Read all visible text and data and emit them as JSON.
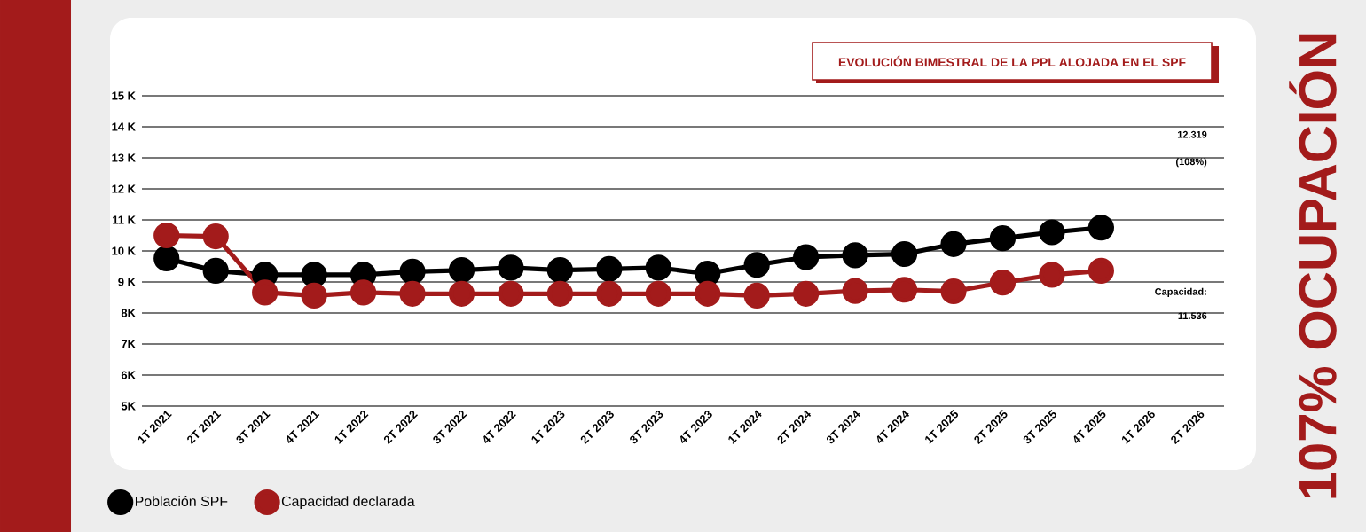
{
  "chart_data": {
    "type": "line",
    "title": "EVOLUCIÓN BIMESTRAL DE LA PPL ALOJADA EN EL SPF",
    "categories": [
      "1T 2021",
      "2T 2021",
      "3T 2021",
      "4T 2021",
      "1T 2022",
      "2T 2022",
      "3T 2022",
      "4T 2022",
      "1T 2023",
      "2T 2023",
      "3T 2023",
      "4T 2023",
      "1T 2024",
      "2T 2024",
      "3T 2024",
      "4T 2024",
      "1T 2025",
      "2T 2025",
      "3T 2025",
      "4T 2025",
      "1T 2026",
      "2T 2026"
    ],
    "series": [
      {
        "name": "Población SPF",
        "color": "#000000",
        "values": [
          9760,
          9360,
          9230,
          9230,
          9230,
          9330,
          9380,
          9460,
          9380,
          9420,
          9460,
          9270,
          9550,
          9800,
          9860,
          9900,
          10220,
          10410,
          10600,
          10750,
          null,
          null
        ]
      },
      {
        "name": "Capacidad declarada",
        "color": "#a31b1b",
        "values": [
          10500,
          10470,
          8660,
          8560,
          8660,
          8620,
          8620,
          8620,
          8620,
          8620,
          8620,
          8620,
          8560,
          8620,
          8710,
          8750,
          8700,
          8980,
          9230,
          9360,
          null,
          null
        ]
      }
    ],
    "ylim": [
      5000,
      15000
    ],
    "yticks": [
      {
        "value": 15000,
        "label": "15 K"
      },
      {
        "value": 14000,
        "label": "14 K"
      },
      {
        "value": 13000,
        "label": "13 K"
      },
      {
        "value": 12000,
        "label": "12 K"
      },
      {
        "value": 11000,
        "label": "11 K"
      },
      {
        "value": 10000,
        "label": "10 K"
      },
      {
        "value": 9000,
        "label": "9 K"
      },
      {
        "value": 8000,
        "label": "8K"
      },
      {
        "value": 7000,
        "label": "7K"
      },
      {
        "value": 6000,
        "label": "6K"
      },
      {
        "value": 5000,
        "label": "5K"
      }
    ],
    "grid": "y",
    "legend": "bottom left",
    "marker": "circle",
    "line_style": "solid",
    "annotations": [
      "12.319",
      "(108%)",
      "Capacidad:",
      "11.536",
      "107% OCUPACIÓN"
    ]
  }
}
